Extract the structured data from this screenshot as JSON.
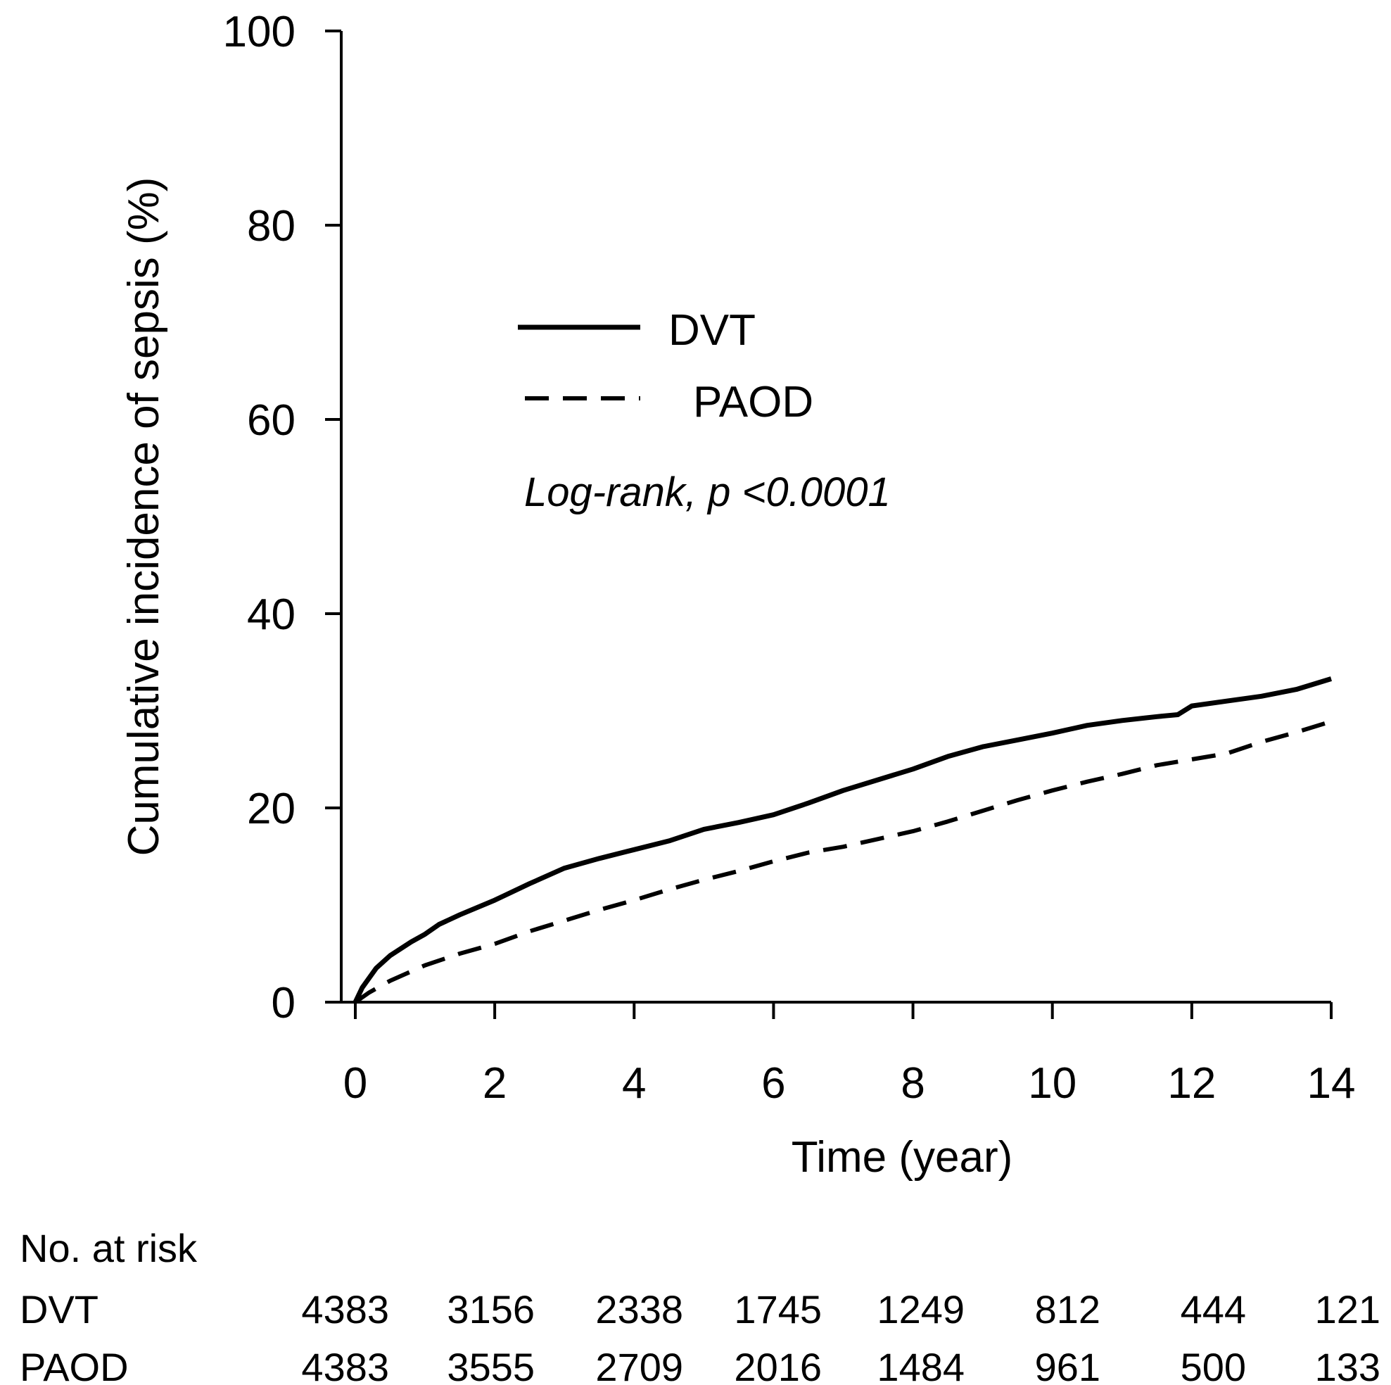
{
  "chart_data": {
    "type": "line",
    "title": "",
    "xlabel": "Time (year)",
    "ylabel": "Cumulative incidence of sepsis (%)",
    "xlim": [
      0,
      14
    ],
    "ylim": [
      0,
      100
    ],
    "x_ticks": [
      0,
      2,
      4,
      6,
      8,
      10,
      12,
      14
    ],
    "y_ticks": [
      0,
      20,
      40,
      60,
      80,
      100
    ],
    "grid": false,
    "legend_position": "upper-center",
    "annotation": "Log-rank, p <0.0001",
    "series": [
      {
        "name": "DVT",
        "style": "solid",
        "x": [
          0,
          0.1,
          0.3,
          0.5,
          0.8,
          1.0,
          1.2,
          1.5,
          2.0,
          2.5,
          3.0,
          3.5,
          4.0,
          4.5,
          5.0,
          5.5,
          6.0,
          6.5,
          7.0,
          7.5,
          8.0,
          8.5,
          9.0,
          9.5,
          10.0,
          10.5,
          11.0,
          11.5,
          11.8,
          12.0,
          12.5,
          13.0,
          13.5,
          14.0
        ],
        "y": [
          0,
          1.5,
          3.5,
          4.8,
          6.2,
          7.0,
          8.0,
          9.0,
          10.5,
          12.2,
          13.8,
          14.8,
          15.7,
          16.6,
          17.8,
          18.5,
          19.3,
          20.5,
          21.8,
          22.9,
          24.0,
          25.3,
          26.3,
          27.0,
          27.7,
          28.5,
          29.0,
          29.4,
          29.6,
          30.5,
          31.0,
          31.5,
          32.2,
          33.3
        ]
      },
      {
        "name": "PAOD",
        "style": "dashed",
        "x": [
          0,
          0.2,
          0.5,
          1.0,
          1.5,
          2.0,
          2.5,
          3.0,
          3.5,
          4.0,
          4.5,
          5.0,
          5.5,
          6.0,
          6.5,
          7.0,
          7.5,
          8.0,
          8.5,
          9.0,
          9.5,
          10.0,
          10.5,
          11.0,
          11.5,
          12.0,
          12.5,
          13.0,
          13.5,
          14.0
        ],
        "y": [
          0,
          1.0,
          2.2,
          3.8,
          5.0,
          6.0,
          7.3,
          8.4,
          9.5,
          10.5,
          11.6,
          12.6,
          13.5,
          14.5,
          15.4,
          16.0,
          16.8,
          17.6,
          18.6,
          19.7,
          20.8,
          21.8,
          22.7,
          23.5,
          24.4,
          25.0,
          25.6,
          26.8,
          27.8,
          28.9
        ]
      }
    ]
  },
  "legend": {
    "dvt_label": "DVT",
    "paod_label": "PAOD"
  },
  "risk_table": {
    "title": "No. at risk",
    "rows": [
      {
        "label": "DVT",
        "values": [
          "4383",
          "3156",
          "2338",
          "1745",
          "1249",
          "812",
          "444",
          "121"
        ]
      },
      {
        "label": "PAOD",
        "values": [
          "4383",
          "3555",
          "2709",
          "2016",
          "1484",
          "961",
          "500",
          "133"
        ]
      }
    ]
  }
}
